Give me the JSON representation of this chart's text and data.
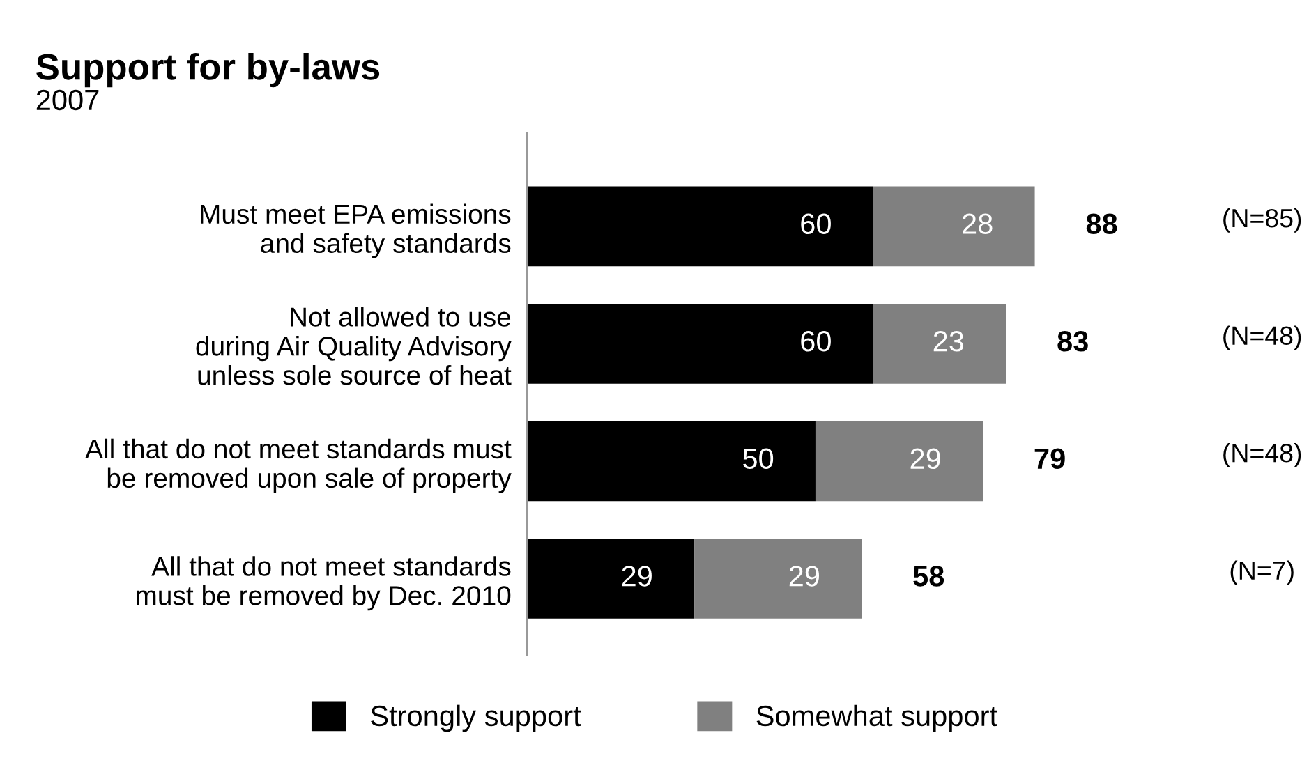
{
  "chart_data": {
    "type": "bar",
    "orientation": "horizontal",
    "stacked": true,
    "title": "Support for by-laws",
    "subtitle": "2007",
    "categories": [
      "Must meet EPA emissions\nand safety standards",
      "Not allowed to use\nduring Air Quality Advisory\nunless sole source of heat",
      "All that do not meet standards must\nbe removed upon sale of property",
      "All that do not meet standards\nmust be removed by Dec. 2010"
    ],
    "series": [
      {
        "name": "Strongly support",
        "color": "#000000",
        "values": [
          60,
          60,
          50,
          29
        ]
      },
      {
        "name": "Somewhat support",
        "color": "#808080",
        "values": [
          28,
          23,
          29,
          29
        ]
      }
    ],
    "data_labels": true,
    "totals": [
      "88",
      "83",
      "79",
      "58"
    ],
    "annotations": [
      "(N=85)",
      "(N=48)",
      "(N=48)",
      "(N=7)"
    ],
    "legend": "bottom",
    "grid": false
  }
}
